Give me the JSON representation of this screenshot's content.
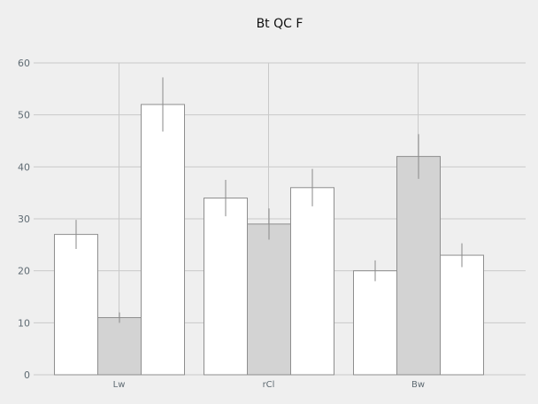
{
  "chart_data": {
    "type": "bar",
    "title": "Bt QC F",
    "xlabel": "",
    "ylabel": "",
    "categories": [
      "Lw",
      "rCl",
      "Bw"
    ],
    "series": [
      {
        "values": [
          27,
          34,
          20
        ],
        "errors": [
          2.8,
          3.5,
          2.0
        ],
        "color": "#ffffff"
      },
      {
        "values": [
          11,
          29,
          42
        ],
        "errors": [
          1.0,
          3.0,
          4.3
        ],
        "color": "#d3d3d3"
      },
      {
        "values": [
          52,
          36,
          23
        ],
        "errors": [
          5.2,
          3.6,
          2.3
        ],
        "color": "#ffffff"
      }
    ],
    "ylim": [
      0,
      60
    ],
    "yticks": [
      0,
      10,
      20,
      30,
      40,
      50,
      60
    ],
    "grid": true,
    "legend": "none"
  }
}
